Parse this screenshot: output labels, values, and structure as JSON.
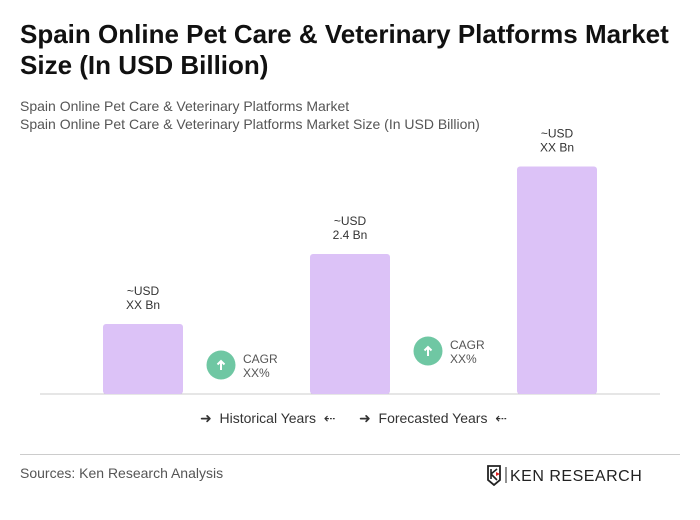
{
  "title": "Spain Online Pet Care & Veterinary Platforms Market Size (In USD Billion)",
  "subtitle1": "Spain Online Pet Care & Veterinary Platforms Market",
  "subtitle2": "Spain Online Pet Care & Veterinary Platforms Market Size (In USD Billion)",
  "chart_data": {
    "type": "bar",
    "categories": [
      "",
      "",
      ""
    ],
    "values": [
      1.2,
      2.4,
      3.9
    ],
    "data_labels": [
      [
        "~USD",
        "XX Bn"
      ],
      [
        "~USD",
        "2.4 Bn"
      ],
      [
        "~USD",
        "XX Bn"
      ]
    ],
    "cagr": [
      {
        "label": "CAGR",
        "value": "XX%"
      },
      {
        "label": "CAGR",
        "value": "XX%"
      }
    ],
    "bar_color": "#dcc2f7",
    "cagr_color": "#6fc7a3",
    "grid": false
  },
  "legend": {
    "historical": "Historical Years",
    "forecasted": "Forecasted Years"
  },
  "sources": "Sources: Ken Research Analysis",
  "logo_text": "KEN RESEARCH"
}
